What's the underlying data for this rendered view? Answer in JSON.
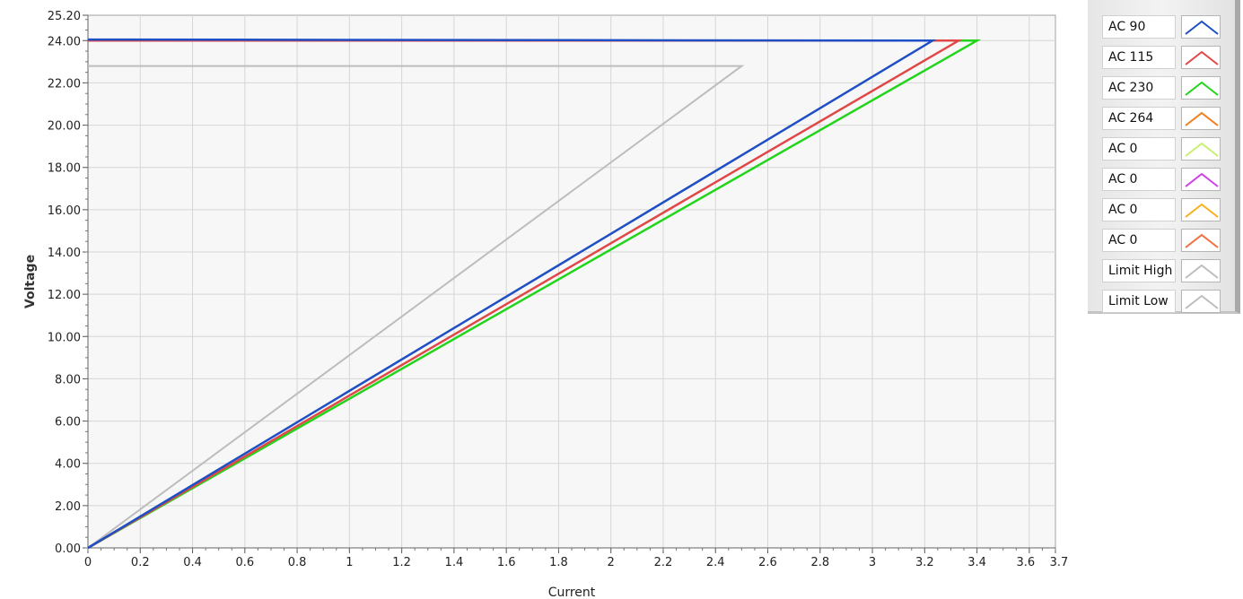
{
  "chart_data": {
    "type": "line",
    "xlabel": "Current",
    "ylabel": "Voltage",
    "xlim": [
      0,
      3.7
    ],
    "ylim": [
      0,
      25.2
    ],
    "x_ticks": [
      "0",
      "0.2",
      "0.4",
      "0.6",
      "0.8",
      "1",
      "1.2",
      "1.4",
      "1.6",
      "1.8",
      "2",
      "2.2",
      "2.4",
      "2.6",
      "2.8",
      "3",
      "3.2",
      "3.4",
      "3.6",
      "3.7"
    ],
    "y_ticks": [
      "0.00",
      "2.00",
      "4.00",
      "6.00",
      "8.00",
      "10.00",
      "12.00",
      "14.00",
      "16.00",
      "18.00",
      "20.00",
      "22.00",
      "24.00",
      "25.20"
    ],
    "grid": true,
    "legend_position": "right",
    "series": [
      {
        "name": "AC 90",
        "color": "#1f4fc4",
        "x": [
          0,
          3.23,
          0
        ],
        "y": [
          0,
          24.0,
          24.05
        ]
      },
      {
        "name": "AC 115",
        "color": "#e04848",
        "x": [
          0,
          3.33,
          0
        ],
        "y": [
          0,
          24.0,
          24.0
        ]
      },
      {
        "name": "AC 230",
        "color": "#22d41a",
        "x": [
          0,
          3.4,
          0
        ],
        "y": [
          0,
          24.0,
          24.0
        ]
      },
      {
        "name": "AC 264",
        "color": "#f08020",
        "x": [],
        "y": []
      },
      {
        "name": "AC 0",
        "color": "#c8f070",
        "x": [],
        "y": []
      },
      {
        "name": "AC 0",
        "color": "#d040e8",
        "x": [],
        "y": []
      },
      {
        "name": "AC 0",
        "color": "#f8b020",
        "x": [],
        "y": []
      },
      {
        "name": "AC 0",
        "color": "#f07040",
        "x": [],
        "y": []
      },
      {
        "name": "Limit High",
        "color": "#bdbdbd",
        "x": [
          0,
          2.5,
          0
        ],
        "y": [
          0,
          22.8,
          22.8
        ]
      },
      {
        "name": "Limit Low",
        "color": "#bdbdbd",
        "x": [],
        "y": []
      }
    ]
  }
}
